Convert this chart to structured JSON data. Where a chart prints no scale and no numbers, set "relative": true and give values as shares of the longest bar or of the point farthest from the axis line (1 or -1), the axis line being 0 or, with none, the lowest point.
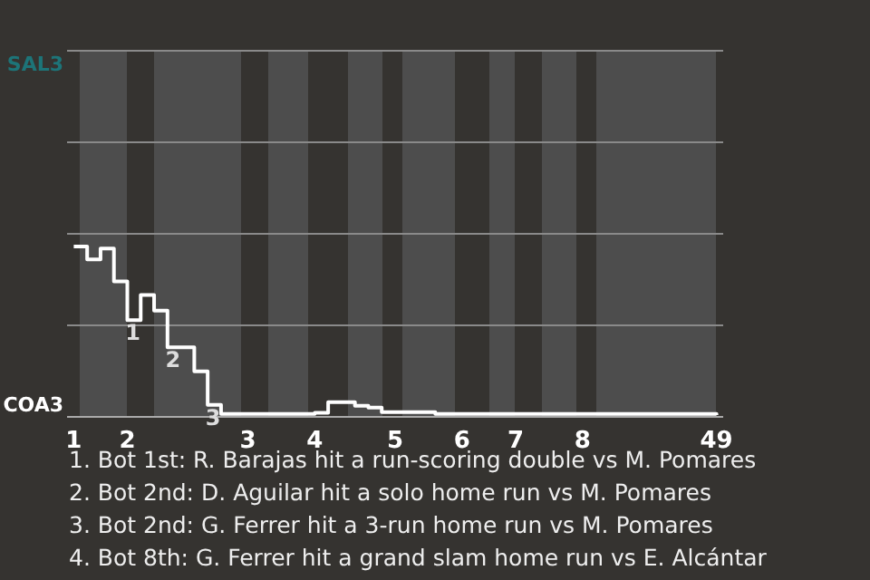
{
  "chart_data": {
    "type": "step",
    "relative": true,
    "categories": [
      "1",
      null,
      null,
      null,
      "2",
      null,
      null,
      null,
      null,
      null,
      null,
      null,
      null,
      "3",
      null,
      null,
      null,
      null,
      "4",
      null,
      null,
      null,
      null,
      null,
      "5",
      null,
      null,
      null,
      null,
      "6",
      null,
      null,
      null,
      "7",
      null,
      null,
      null,
      null,
      "8",
      null,
      null,
      null,
      null,
      null,
      null,
      null,
      null,
      null,
      "49"
    ],
    "series": [
      {
        "color": "#ffffff",
        "values": [
          1,
          0.925,
          0.989,
          0.796,
          0.568,
          0.716,
          0.624,
          0.409,
          0.409,
          0.267,
          0.071,
          0.017,
          0.017,
          0.017,
          0.017,
          0.017,
          0.017,
          0.017,
          0.024,
          0.086,
          0.086,
          0.065,
          0.054,
          0.028,
          0.028,
          0.028,
          0.028,
          0.017,
          0.017,
          0.017,
          0.017,
          0.017,
          0.017,
          0.017,
          0.017,
          0.017,
          0.017,
          0.017,
          0.017,
          0.017,
          0.017,
          0.017,
          0.017,
          0.017,
          0.017,
          0.017,
          0.017,
          0.017,
          0.011
        ]
      }
    ],
    "legend": false,
    "marker": "none",
    "line_style": "solid",
    "ref_lines": [
      {
        "axis": "y",
        "value": 0.5375,
        "color": "#8a8a8a"
      },
      {
        "axis": "y",
        "value": 1.075,
        "color": "#8a8a8a"
      },
      {
        "axis": "y",
        "value": 1.6125,
        "color": "#8a8a8a"
      },
      {
        "axis": "y",
        "value": 2.15,
        "color": "#8a8a8a"
      }
    ],
    "annotations": [
      {
        "text": "1",
        "y": 0.568
      },
      {
        "text": "2",
        "y": 0.409
      },
      {
        "text": "3",
        "y": 0.071
      },
      "SAL3",
      "COA3",
      "1. Bot 1st: R. Barajas hit a run-scoring double vs M. Pomares",
      "2. Bot 2nd: D. Aguilar hit a solo home run vs M. Pomares",
      "3. Bot 2nd: G. Ferrer hit a 3-run home run vs M. Pomares",
      "4. Bot 8th: G. Ferrer hit a grand slam home run vs E. Alcántar"
    ]
  }
}
